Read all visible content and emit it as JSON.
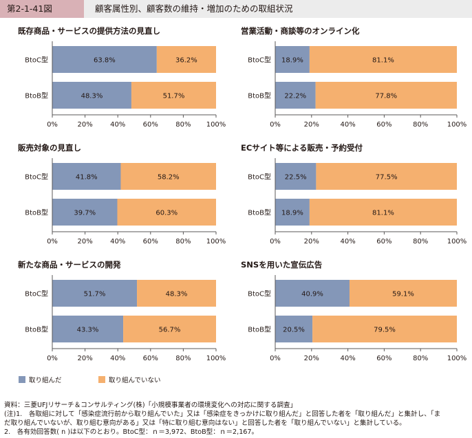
{
  "header": {
    "figure_number": "第2-1-41図",
    "title": "顧客属性別、顧客数の維持・増加のための取組状況"
  },
  "colors": {
    "done": "#8497b8",
    "not_done": "#f5b06f"
  },
  "legend": {
    "done": "取り組んだ",
    "not_done": "取り組んでいない"
  },
  "chart_data": [
    {
      "type": "bar",
      "orientation": "horizontal",
      "stacked": true,
      "title": "既存商品・サービスの提供方法の見直し",
      "categories": [
        "BtoC型",
        "BtoB型"
      ],
      "series": [
        {
          "name": "取り組んだ",
          "values": [
            63.8,
            48.3
          ]
        },
        {
          "name": "取り組んでいない",
          "values": [
            36.2,
            51.7
          ]
        }
      ],
      "xlim": [
        0,
        100
      ],
      "xticks": [
        "0%",
        "20%",
        "40%",
        "60%",
        "80%",
        "100%"
      ]
    },
    {
      "type": "bar",
      "orientation": "horizontal",
      "stacked": true,
      "title": "営業活動・商談等のオンライン化",
      "categories": [
        "BtoC型",
        "BtoB型"
      ],
      "series": [
        {
          "name": "取り組んだ",
          "values": [
            18.9,
            22.2
          ]
        },
        {
          "name": "取り組んでいない",
          "values": [
            81.1,
            77.8
          ]
        }
      ],
      "xlim": [
        0,
        100
      ],
      "xticks": [
        "0%",
        "20%",
        "40%",
        "60%",
        "80%",
        "100%"
      ]
    },
    {
      "type": "bar",
      "orientation": "horizontal",
      "stacked": true,
      "title": "販売対象の見直し",
      "categories": [
        "BtoC型",
        "BtoB型"
      ],
      "series": [
        {
          "name": "取り組んだ",
          "values": [
            41.8,
            39.7
          ]
        },
        {
          "name": "取り組んでいない",
          "values": [
            58.2,
            60.3
          ]
        }
      ],
      "xlim": [
        0,
        100
      ],
      "xticks": [
        "0%",
        "20%",
        "40%",
        "60%",
        "80%",
        "100%"
      ]
    },
    {
      "type": "bar",
      "orientation": "horizontal",
      "stacked": true,
      "title": "ECサイト等による販売・予約受付",
      "categories": [
        "BtoC型",
        "BtoB型"
      ],
      "series": [
        {
          "name": "取り組んだ",
          "values": [
            22.5,
            18.9
          ]
        },
        {
          "name": "取り組んでいない",
          "values": [
            77.5,
            81.1
          ]
        }
      ],
      "xlim": [
        0,
        100
      ],
      "xticks": [
        "0%",
        "20%",
        "40%",
        "60%",
        "80%",
        "100%"
      ]
    },
    {
      "type": "bar",
      "orientation": "horizontal",
      "stacked": true,
      "title": "新たな商品・サービスの開発",
      "categories": [
        "BtoC型",
        "BtoB型"
      ],
      "series": [
        {
          "name": "取り組んだ",
          "values": [
            51.7,
            43.3
          ]
        },
        {
          "name": "取り組んでいない",
          "values": [
            48.3,
            56.7
          ]
        }
      ],
      "xlim": [
        0,
        100
      ],
      "xticks": [
        "0%",
        "20%",
        "40%",
        "60%",
        "80%",
        "100%"
      ]
    },
    {
      "type": "bar",
      "orientation": "horizontal",
      "stacked": true,
      "title": "SNSを用いた宣伝広告",
      "categories": [
        "BtoC型",
        "BtoB型"
      ],
      "series": [
        {
          "name": "取り組んだ",
          "values": [
            40.9,
            20.5
          ]
        },
        {
          "name": "取り組んでいない",
          "values": [
            59.1,
            79.5
          ]
        }
      ],
      "xlim": [
        0,
        100
      ],
      "xticks": [
        "0%",
        "20%",
        "40%",
        "60%",
        "80%",
        "100%"
      ]
    }
  ],
  "notes": [
    "資料：三菱UFJリサーチ＆コンサルティング(株)「小規模事業者の環境変化への対応に関する調査」",
    "(注)1.　各取組に対して「感染症流行前から取り組んでいた」又は「感染症をきっかけに取り組んだ」と回答した者を「取り組んだ」と集計し、「ま",
    "だ取り組んでいないが、取り組む意向がある」又は「特に取り組む意向はない」と回答した者を「取り組んでいない」と集計している。",
    "2.　各有効回答数( n )は以下のとおり。BtoC型：ｎ＝3,972、BtoB型：ｎ＝2,167。"
  ]
}
